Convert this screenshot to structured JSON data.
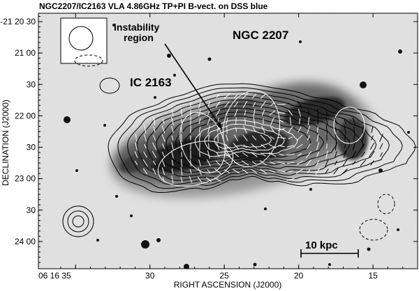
{
  "chart_data": {
    "type": "contour-map",
    "title": "NGC2207/IC2163 VLA 4.86GHz TP+PI B-vect. on DSS blue",
    "xlabel": "RIGHT ASCENSION (J2000)",
    "ylabel": "DECLINATION (J2000)",
    "x_ticks": [
      {
        "label": "06 16 35",
        "ra_sec": 35
      },
      {
        "label": "30",
        "ra_sec": 30
      },
      {
        "label": "25",
        "ra_sec": 25
      },
      {
        "label": "20",
        "ra_sec": 20
      },
      {
        "label": "15",
        "ra_sec": 15
      }
    ],
    "y_ticks": [
      {
        "label": "-21 20 30",
        "dec_arcsec": 1230
      },
      {
        "label": "21 00",
        "dec_arcsec": 1260
      },
      {
        "label": "30",
        "dec_arcsec": 1290
      },
      {
        "label": "22 00",
        "dec_arcsec": 1320
      },
      {
        "label": "30",
        "dec_arcsec": 1350
      },
      {
        "label": "23 00",
        "dec_arcsec": 1380
      },
      {
        "label": "30",
        "dec_arcsec": 1410
      },
      {
        "label": "24 00",
        "dec_arcsec": 1440
      }
    ],
    "xlim_ra_sec": [
      37.5,
      12.0
    ],
    "ylim_dec_arcsec": [
      1222,
      1466
    ],
    "annotations": [
      {
        "text": "NGC 2207"
      },
      {
        "text": "IC 2163"
      },
      {
        "text": "instability"
      },
      {
        "text": "region"
      },
      {
        "text": "10 kpc"
      }
    ],
    "contour_levels": 12,
    "background": "DSS blue optical image (inverted grey scale)",
    "overlay": "polarization B-vectors"
  },
  "colors": {
    "contour": "#000000",
    "vector": "#ffffff",
    "sky": "#e4e4e4",
    "frame": "#000000"
  }
}
